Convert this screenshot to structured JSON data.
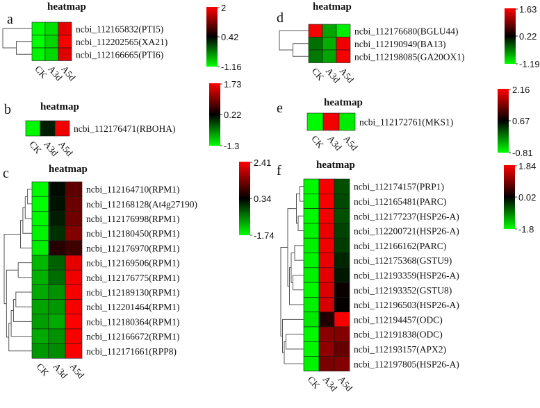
{
  "figure": {
    "bg_color": "#ffffff",
    "colormap": {
      "low": "#00ff00",
      "mid": "#000000",
      "high": "#ff0000"
    }
  },
  "chart_data": [
    {
      "id": "a",
      "type": "heatmap",
      "title": "heatmap",
      "panel_label": "a",
      "columns": [
        "CK",
        "A3d",
        "A5d"
      ],
      "rows": [
        {
          "label": "ncbi_112165832(PTI5)",
          "values": [
            -1.12,
            -0.95,
            1.85
          ]
        },
        {
          "label": "ncbi_112202565(XA21)",
          "values": [
            -1.15,
            -0.9,
            1.95
          ]
        },
        {
          "label": "ncbi_112166665(PTI6)",
          "values": [
            -1.1,
            -0.92,
            1.8
          ]
        }
      ],
      "scale": {
        "max": 2,
        "mid": 0.42,
        "min": -1.16
      }
    },
    {
      "id": "b",
      "type": "heatmap",
      "title": "heatmap",
      "panel_label": "b",
      "columns": [
        "CK",
        "A3d",
        "A5d"
      ],
      "rows": [
        {
          "label": "ncbi_112176471(RBOHA)",
          "values": [
            -1.25,
            0.05,
            1.65
          ]
        }
      ],
      "scale": {
        "max": 1.73,
        "mid": 0.22,
        "min": -1.3
      }
    },
    {
      "id": "c",
      "type": "heatmap",
      "title": "heatmap",
      "panel_label": "c",
      "columns": [
        "CK",
        "A3d",
        "A5d"
      ],
      "rows": [
        {
          "label": "ncbi_112164710(RPM1)",
          "values": [
            -1.7,
            0.25,
            1.1
          ]
        },
        {
          "label": "ncbi_112168128(At4g27190)",
          "values": [
            -1.72,
            0.2,
            1.2
          ]
        },
        {
          "label": "ncbi_112176998(RPM1)",
          "values": [
            -1.68,
            0.1,
            1.25
          ]
        },
        {
          "label": "ncbi_112180450(RPM1)",
          "values": [
            -1.65,
            -0.05,
            1.4
          ]
        },
        {
          "label": "ncbi_112176970(RPM1)",
          "values": [
            -1.6,
            0.65,
            0.85
          ]
        },
        {
          "label": "ncbi_112169506(RPM1)",
          "values": [
            -1.15,
            -0.45,
            2.2
          ]
        },
        {
          "label": "ncbi_112176775(RPM1)",
          "values": [
            -1.1,
            -0.55,
            2.3
          ]
        },
        {
          "label": "ncbi_112189130(RPM1)",
          "values": [
            -1.05,
            -0.85,
            2.35
          ]
        },
        {
          "label": "ncbi_112201464(RPM1)",
          "values": [
            -1.0,
            -0.9,
            2.35
          ]
        },
        {
          "label": "ncbi_112180364(RPM1)",
          "values": [
            -0.95,
            -1.05,
            2.4
          ]
        },
        {
          "label": "ncbi_112166672(RPM1)",
          "values": [
            -1.05,
            -0.85,
            2.35
          ]
        },
        {
          "label": "ncbi_112171661(RPP8)",
          "values": [
            -0.9,
            -0.8,
            2.38
          ]
        }
      ],
      "scale": {
        "max": 2.41,
        "mid": 0.34,
        "min": -1.74
      }
    },
    {
      "id": "d",
      "type": "heatmap",
      "title": "heatmap",
      "panel_label": "d",
      "columns": [
        "CK",
        "A3d",
        "A5d"
      ],
      "rows": [
        {
          "label": "ncbi_112176680(BGLU44)",
          "values": [
            1.6,
            -0.7,
            -1.1
          ]
        },
        {
          "label": "ncbi_112190949(BA13)",
          "values": [
            -0.4,
            -0.75,
            1.55
          ]
        },
        {
          "label": "ncbi_112198085(GA20OX1)",
          "values": [
            -0.45,
            -0.7,
            1.58
          ]
        }
      ],
      "scale": {
        "max": 1.63,
        "mid": 0.22,
        "min": -1.19
      }
    },
    {
      "id": "e",
      "type": "heatmap",
      "title": "heatmap",
      "panel_label": "e",
      "columns": [
        "CK",
        "A3d",
        "A5d"
      ],
      "rows": [
        {
          "label": "ncbi_112172761(MKS1)",
          "values": [
            -0.78,
            2.1,
            -0.7
          ]
        }
      ],
      "scale": {
        "max": 2.16,
        "mid": 0.67,
        "min": -0.81
      }
    },
    {
      "id": "f",
      "type": "heatmap",
      "title": "heatmap",
      "panel_label": "f",
      "columns": [
        "CK",
        "A3d",
        "A5d"
      ],
      "rows": [
        {
          "label": "ncbi_112174157(PRP1)",
          "values": [
            -1.75,
            1.8,
            -0.55
          ]
        },
        {
          "label": "ncbi_112165481(PARC)",
          "values": [
            -1.75,
            1.78,
            -0.5
          ]
        },
        {
          "label": "ncbi_112177237(HSP26-A)",
          "values": [
            -1.75,
            1.75,
            -0.55
          ]
        },
        {
          "label": "ncbi_112200721(HSP26-A)",
          "values": [
            -1.72,
            1.7,
            -0.45
          ]
        },
        {
          "label": "ncbi_112166162(PARC)",
          "values": [
            -1.7,
            1.72,
            -0.4
          ]
        },
        {
          "label": "ncbi_112175368(GSTU9)",
          "values": [
            -1.72,
            1.7,
            -0.25
          ]
        },
        {
          "label": "ncbi_112193359(HSP26-A)",
          "values": [
            -1.7,
            1.65,
            -0.15
          ]
        },
        {
          "label": "ncbi_112193352(GSTU8)",
          "values": [
            -1.75,
            1.6,
            0.1
          ]
        },
        {
          "label": "ncbi_112196503(HSP26-A)",
          "values": [
            -1.7,
            1.55,
            0.05
          ]
        },
        {
          "label": "ncbi_112194457(ODC)",
          "values": [
            -1.65,
            0.25,
            1.8
          ]
        },
        {
          "label": "ncbi_112191838(ODC)",
          "values": [
            -1.75,
            1.0,
            0.95
          ]
        },
        {
          "label": "ncbi_112193157(APX2)",
          "values": [
            -1.75,
            1.05,
            0.75
          ]
        },
        {
          "label": "ncbi_112197805(HSP26-A)",
          "values": [
            -1.72,
            0.9,
            0.95
          ]
        }
      ],
      "scale": {
        "max": 1.84,
        "mid": 0.02,
        "min": -1.8
      }
    }
  ]
}
